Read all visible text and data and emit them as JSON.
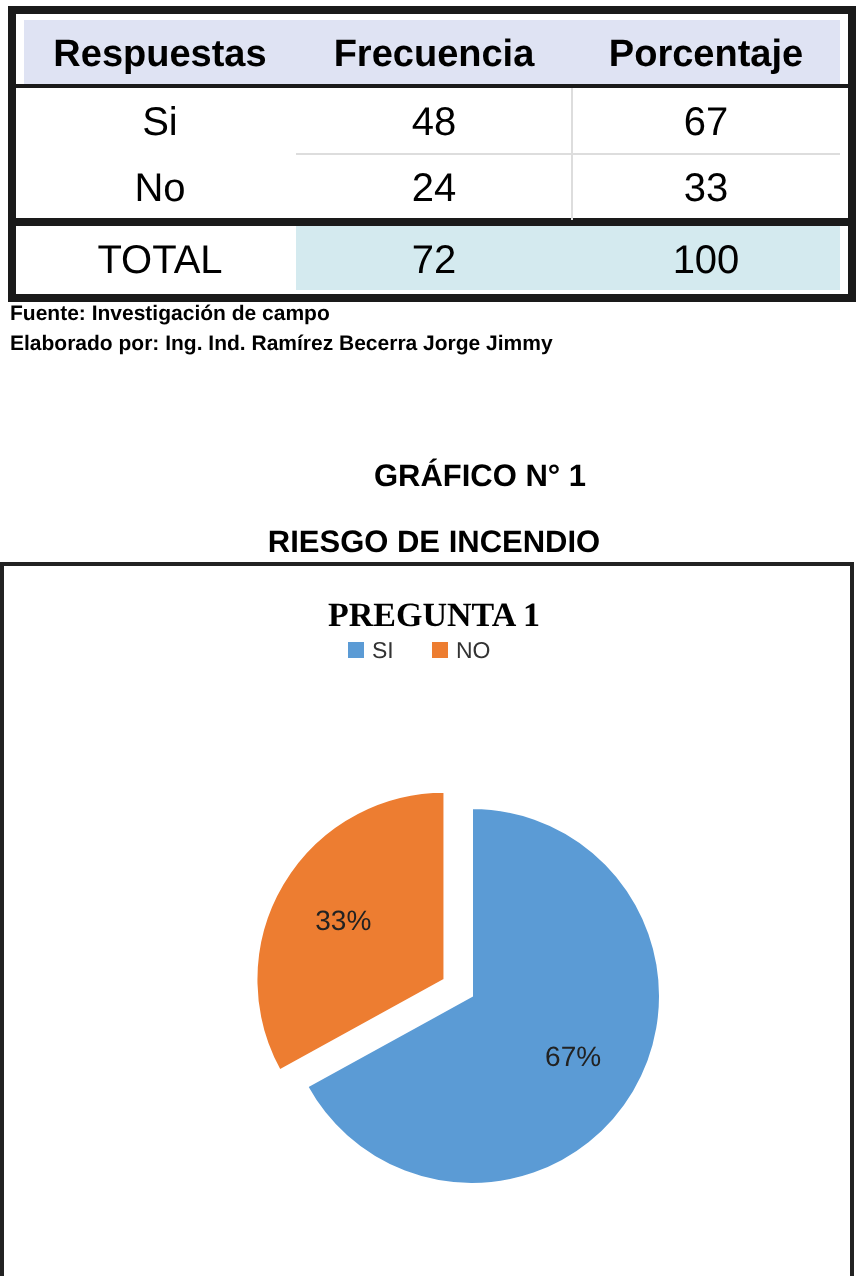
{
  "chart_data": [
    {
      "type": "other",
      "xlabel": "Respuestas",
      "categories": [
        "Si",
        "No",
        "TOTAL"
      ],
      "series": [
        {
          "name": "Frecuencia",
          "colors": [
            "#ffffff",
            "#ffffff",
            "#d4eaef"
          ],
          "values": [
            48,
            24,
            72
          ]
        },
        {
          "name": "Porcentaje",
          "colors": [
            "#ffffff",
            "#ffffff",
            "#d4eaef"
          ],
          "values": [
            67,
            33,
            100
          ]
        }
      ],
      "data_labels": true,
      "annotations": [
        "Fuente: Investigación de campo",
        "Elaborado por: Ing. Ind. Ramírez Becerra Jorge Jimmy"
      ]
    },
    {
      "type": "pie",
      "title": "PREGUNTA 1",
      "annotations": [
        "GRÁFICO N° 1",
        "RIESGO DE INCENDIO"
      ],
      "categories": [
        "SI",
        "NO"
      ],
      "values": [
        67,
        33
      ],
      "colors": [
        "#5b9bd5",
        "#ed7d31"
      ],
      "value_labels": [
        "67%",
        "33%"
      ],
      "legend": "top"
    }
  ]
}
